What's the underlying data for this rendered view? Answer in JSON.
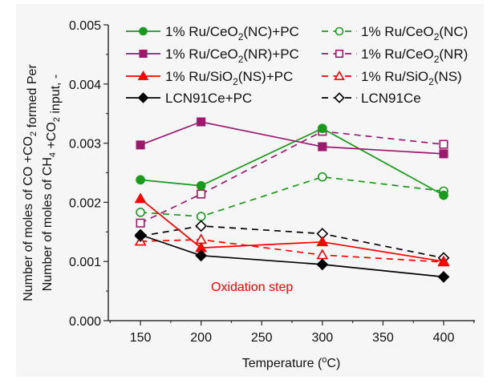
{
  "chart_data": {
    "type": "line",
    "title": "",
    "xlabel": "Temperature (°C)",
    "xlabel_parts": {
      "pre": "Temperature (",
      "sup": "o",
      "post": "C)"
    },
    "ylabel_lines": [
      "Number of moles of CO +CO2 formed Per",
      "Number of moles of CH4 +CO2 input, -"
    ],
    "xlim": [
      123.5,
      425.8
    ],
    "ylim": [
      0,
      0.005
    ],
    "x_ticks": [
      150,
      200,
      250,
      300,
      350,
      400
    ],
    "x_tick_labels": [
      "150",
      "200",
      "250",
      "300",
      "350",
      "400"
    ],
    "y_ticks": [
      0,
      0.001,
      0.002,
      0.003,
      0.004,
      0.005
    ],
    "y_tick_labels": [
      "0.000",
      "0.001",
      "0.002",
      "0.003",
      "0.004",
      "0.005"
    ],
    "grid": false,
    "legend_position": "top",
    "annotation": {
      "text": "Oxidation step",
      "color": "#ff0000"
    },
    "x": [
      150,
      200,
      300,
      400
    ],
    "series": [
      {
        "name": "1% Ru/CeO2(NC)+PC",
        "label_parts": [
          "1% Ru/CeO",
          "2",
          "(NC)+PC"
        ],
        "color": "#1a9a1a",
        "dash": false,
        "marker": "circle",
        "filled": true,
        "values": [
          0.00238,
          0.00228,
          0.00325,
          0.00212
        ]
      },
      {
        "name": "1% Ru/CeO2(NC)",
        "label_parts": [
          "1% Ru/CeO",
          "2",
          "(NC)"
        ],
        "color": "#1a9a1a",
        "dash": true,
        "marker": "circle",
        "filled": false,
        "values": [
          0.00183,
          0.00176,
          0.00243,
          0.00219
        ]
      },
      {
        "name": "1% Ru/CeO2(NR)+PC",
        "label_parts": [
          "1% Ru/CeO",
          "2",
          "(NR)+PC"
        ],
        "color": "#9c1a6e",
        "dash": false,
        "marker": "square",
        "filled": true,
        "values": [
          0.00297,
          0.00336,
          0.00294,
          0.00282
        ]
      },
      {
        "name": "1% Ru/CeO2(NR)",
        "label_parts": [
          "1% Ru/CeO",
          "2",
          "(NR)"
        ],
        "color": "#9c1a6e",
        "dash": true,
        "marker": "square",
        "filled": false,
        "values": [
          0.00165,
          0.00214,
          0.0032,
          0.00298
        ]
      },
      {
        "name": "1% Ru/SiO2(NS)+PC",
        "label_parts": [
          "1% Ru/SiO",
          "2",
          "(NS)+PC"
        ],
        "color": "#ff0000",
        "dash": false,
        "marker": "triangle",
        "filled": true,
        "values": [
          0.00206,
          0.00123,
          0.00133,
          0.001
        ]
      },
      {
        "name": "1% Ru/SiO2(NS)",
        "label_parts": [
          "1% Ru/SiO",
          "2",
          "(NS)"
        ],
        "color": "#ff0000",
        "dash": true,
        "marker": "triangle",
        "filled": false,
        "values": [
          0.00134,
          0.00137,
          0.00111,
          0.00099
        ]
      },
      {
        "name": "LCN91Ce+PC",
        "label_parts": [
          "LCN91Ce+PC",
          "",
          ""
        ],
        "color": "#000000",
        "dash": false,
        "marker": "diamond",
        "filled": true,
        "values": [
          0.00145,
          0.0011,
          0.00095,
          0.00074
        ]
      },
      {
        "name": "LCN91Ce",
        "label_parts": [
          "LCN91Ce",
          "",
          ""
        ],
        "color": "#000000",
        "dash": true,
        "marker": "diamond",
        "filled": false,
        "values": [
          0.00143,
          0.0016,
          0.00147,
          0.00106
        ]
      }
    ]
  }
}
